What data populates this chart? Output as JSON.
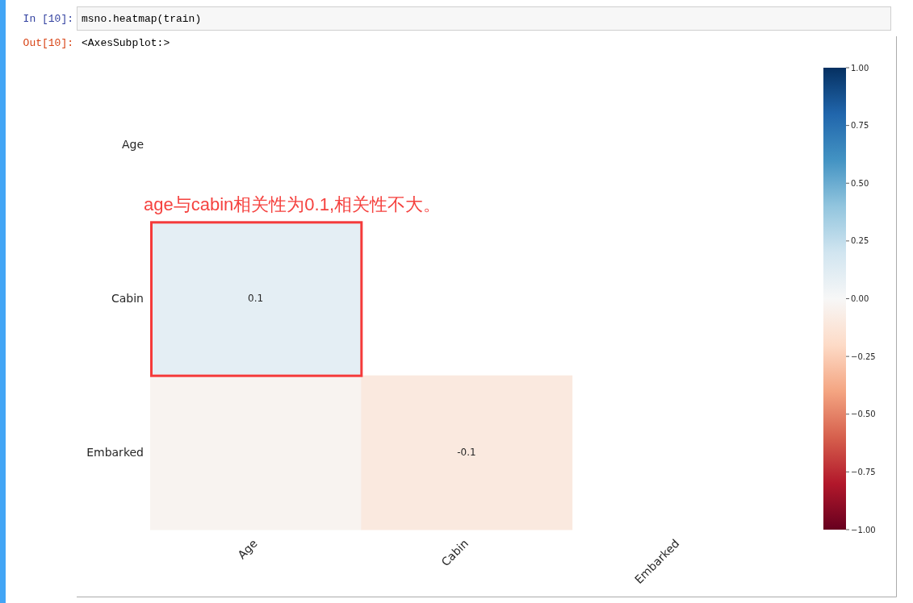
{
  "chart_data": {
    "type": "heatmap",
    "categories": [
      "Age",
      "Cabin",
      "Embarked"
    ],
    "y_categories": [
      "Age",
      "Cabin",
      "Embarked"
    ],
    "cells": [
      [
        null,
        null,
        null
      ],
      [
        0.1,
        null,
        null
      ],
      [
        -0.03,
        -0.1,
        null
      ]
    ],
    "cell_labels": [
      [
        null,
        null,
        null
      ],
      [
        "0.1",
        null,
        null
      ],
      [
        null,
        "-0.1",
        null
      ]
    ],
    "clim": [
      -1,
      1
    ],
    "cticks": [
      {
        "value": -1,
        "label": "−1.00"
      },
      {
        "value": -0.75,
        "label": "−0.75"
      },
      {
        "value": -0.5,
        "label": "−0.50"
      },
      {
        "value": -0.25,
        "label": "−0.25"
      },
      {
        "value": 0,
        "label": "0.00"
      },
      {
        "value": 0.25,
        "label": "0.25"
      },
      {
        "value": 0.5,
        "label": "0.50"
      },
      {
        "value": 0.75,
        "label": "0.75"
      },
      {
        "value": 1,
        "label": "1.00"
      }
    ],
    "annotations": [
      "In [10]:",
      "msno.heatmap(train)",
      "Out[10]:",
      "<AxesSubplot:>",
      "age与cabin相关性为0.1,相关性不大。"
    ]
  }
}
